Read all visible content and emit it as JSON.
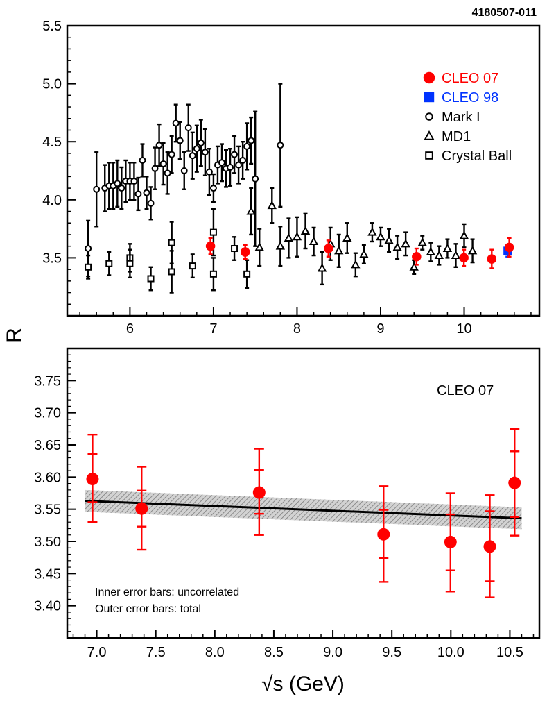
{
  "figure_code": "4180507-011",
  "y_axis_label": "R",
  "x_axis_label": "√s (GeV)",
  "colors": {
    "cleo07": "#ff0000",
    "cleo98": "#0033ff",
    "black": "#000000",
    "band": "#b8b8b8"
  },
  "chart_data": [
    {
      "type": "scatter",
      "panel": "top",
      "title": "",
      "xlim": [
        5.25,
        10.9
      ],
      "ylim": [
        3.0,
        5.5
      ],
      "x_ticks": [
        6,
        7,
        8,
        9,
        10
      ],
      "x_tick_labels": [
        "6",
        "7",
        "8",
        "9",
        "10"
      ],
      "y_ticks": [
        3.5,
        4.0,
        4.5,
        5.0,
        5.5
      ],
      "y_tick_labels": [
        "3.5",
        "4.0",
        "4.5",
        "5.0",
        "5.5"
      ],
      "legend": {
        "position": "top-right",
        "entries": [
          "CLEO 07",
          "CLEO 98",
          "Mark I",
          "MD1",
          "Crystal Ball"
        ]
      },
      "series": [
        {
          "name": "CLEO 07",
          "marker": "filled-circle",
          "color": "#ff0000",
          "x": [
            6.964,
            7.38,
            8.376,
            9.43,
            9.997,
            10.33,
            10.54
          ],
          "y": [
            3.6,
            3.55,
            3.58,
            3.51,
            3.5,
            3.49,
            3.59
          ],
          "err": [
            0.07,
            0.06,
            0.07,
            0.07,
            0.07,
            0.08,
            0.08
          ]
        },
        {
          "name": "CLEO 98",
          "marker": "filled-square",
          "color": "#0033ff",
          "x": [
            10.52
          ],
          "y": [
            3.56
          ],
          "err": [
            0.05
          ]
        },
        {
          "name": "Mark I",
          "marker": "open-circle",
          "color": "#000000",
          "x": [
            5.5,
            5.6,
            5.7,
            5.75,
            5.8,
            5.85,
            5.9,
            5.95,
            6.0,
            6.05,
            6.1,
            6.15,
            6.2,
            6.25,
            6.3,
            6.35,
            6.4,
            6.45,
            6.5,
            6.55,
            6.6,
            6.65,
            6.7,
            6.75,
            6.8,
            6.85,
            6.9,
            6.95,
            7.0,
            7.05,
            7.1,
            7.15,
            7.2,
            7.25,
            7.3,
            7.35,
            7.4,
            7.45,
            7.5,
            7.8
          ],
          "y": [
            3.58,
            4.09,
            4.1,
            4.12,
            4.12,
            4.14,
            4.1,
            4.16,
            4.16,
            4.16,
            4.05,
            4.34,
            4.06,
            3.97,
            4.27,
            4.47,
            4.31,
            4.23,
            4.39,
            4.66,
            4.51,
            4.25,
            4.62,
            4.38,
            4.44,
            4.49,
            4.41,
            4.24,
            4.1,
            4.3,
            4.32,
            4.27,
            4.28,
            4.39,
            4.3,
            4.34,
            4.46,
            4.51,
            4.18,
            4.47
          ],
          "err": [
            0.24,
            0.32,
            0.2,
            0.2,
            0.2,
            0.2,
            0.18,
            0.18,
            0.16,
            0.16,
            0.14,
            0.14,
            0.14,
            0.14,
            0.18,
            0.18,
            0.18,
            0.18,
            0.16,
            0.16,
            0.16,
            0.16,
            0.2,
            0.2,
            0.2,
            0.2,
            0.2,
            0.2,
            0.12,
            0.16,
            0.16,
            0.16,
            0.16,
            0.16,
            0.16,
            0.16,
            0.2,
            0.2,
            0.58,
            0.53
          ]
        },
        {
          "name": "MD1",
          "marker": "open-triangle",
          "color": "#000000",
          "x": [
            7.45,
            7.55,
            7.7,
            7.8,
            7.9,
            8.0,
            8.1,
            8.2,
            8.3,
            8.4,
            8.5,
            8.6,
            8.7,
            8.8,
            8.9,
            9.0,
            9.1,
            9.2,
            9.3,
            9.4,
            9.5,
            9.6,
            9.7,
            9.8,
            9.9,
            10.0,
            10.1
          ],
          "y": [
            3.9,
            3.59,
            3.95,
            3.6,
            3.67,
            3.68,
            3.73,
            3.64,
            3.41,
            3.62,
            3.56,
            3.67,
            3.44,
            3.53,
            3.72,
            3.68,
            3.65,
            3.59,
            3.62,
            3.42,
            3.63,
            3.55,
            3.52,
            3.58,
            3.52,
            3.69,
            3.56
          ],
          "err": [
            0.2,
            0.16,
            0.15,
            0.17,
            0.17,
            0.17,
            0.15,
            0.12,
            0.14,
            0.14,
            0.14,
            0.13,
            0.1,
            0.08,
            0.08,
            0.08,
            0.1,
            0.1,
            0.1,
            0.06,
            0.06,
            0.08,
            0.08,
            0.08,
            0.1,
            0.1,
            0.1
          ]
        },
        {
          "name": "Crystal Ball",
          "marker": "open-square",
          "color": "#000000",
          "x": [
            5.5,
            5.75,
            6.0,
            6.0,
            6.25,
            6.5,
            6.5,
            6.75,
            7.0,
            7.0,
            7.25,
            7.4
          ],
          "y": [
            3.42,
            3.45,
            3.5,
            3.45,
            3.32,
            3.63,
            3.38,
            3.43,
            3.72,
            3.36,
            3.58,
            3.36
          ],
          "err": [
            0.1,
            0.1,
            0.12,
            0.12,
            0.1,
            0.18,
            0.18,
            0.1,
            0.2,
            0.14,
            0.1,
            0.12
          ]
        }
      ]
    },
    {
      "type": "scatter",
      "panel": "bottom",
      "title": "CLEO 07",
      "xlim": [
        6.75,
        10.75
      ],
      "ylim": [
        3.35,
        3.8
      ],
      "x_ticks": [
        7.0,
        7.5,
        8.0,
        8.5,
        9.0,
        9.5,
        10.0,
        10.5
      ],
      "x_tick_labels": [
        "7.0",
        "7.5",
        "8.0",
        "8.5",
        "9.0",
        "9.5",
        "10.0",
        "10.5"
      ],
      "y_ticks": [
        3.4,
        3.45,
        3.5,
        3.55,
        3.6,
        3.65,
        3.7,
        3.75
      ],
      "y_tick_labels": [
        "3.40",
        "3.45",
        "3.50",
        "3.55",
        "3.60",
        "3.65",
        "3.70",
        "3.75"
      ],
      "annotations": [
        "Inner error bars: uncorrelated",
        "Outer error bars: total"
      ],
      "series": [
        {
          "name": "CLEO 07",
          "marker": "filled-circle",
          "color": "#ff0000",
          "x": [
            6.964,
            7.38,
            8.376,
            9.43,
            9.997,
            10.33,
            10.54
          ],
          "y": [
            3.597,
            3.551,
            3.576,
            3.511,
            3.499,
            3.492,
            3.591
          ],
          "inner_err_low": [
            3.561,
            3.523,
            3.543,
            3.474,
            3.455,
            3.438,
            3.538
          ],
          "inner_err_high": [
            3.636,
            3.579,
            3.611,
            3.549,
            3.542,
            3.547,
            3.64
          ],
          "outer_err_low": [
            3.53,
            3.487,
            3.51,
            3.437,
            3.422,
            3.413,
            3.509
          ],
          "outer_err_high": [
            3.666,
            3.616,
            3.644,
            3.586,
            3.575,
            3.572,
            3.675
          ]
        }
      ],
      "fit": {
        "name": "Linear fit",
        "x": [
          6.9,
          10.6
        ],
        "y": [
          3.563,
          3.536
        ],
        "band_halfwidth": 0.017
      }
    }
  ]
}
